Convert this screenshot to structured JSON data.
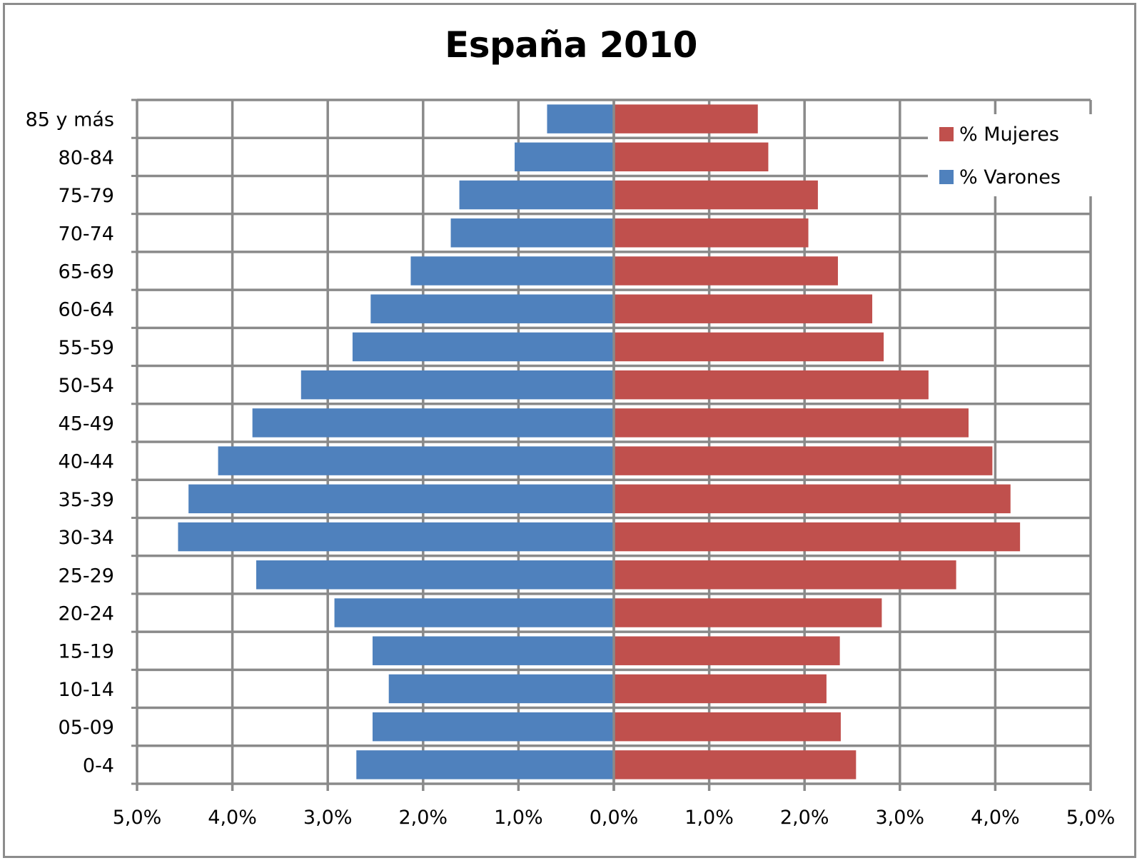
{
  "chart_data": {
    "type": "bar",
    "orientation": "horizontal",
    "title": "España 2010",
    "categories": [
      "0-4",
      "05-09",
      "10-14",
      "15-19",
      "20-24",
      "25-29",
      "30-34",
      "35-39",
      "40-44",
      "45-49",
      "50-54",
      "55-59",
      "60-64",
      "65-69",
      "70-74",
      "75-79",
      "80-84",
      "85 y más"
    ],
    "series": [
      {
        "name": "% Varones",
        "color": "#4f81bd",
        "side": "left",
        "values": [
          2.7,
          2.53,
          2.36,
          2.53,
          2.93,
          3.75,
          4.57,
          4.46,
          4.15,
          3.79,
          3.28,
          2.74,
          2.55,
          2.13,
          1.71,
          1.62,
          1.04,
          0.7
        ]
      },
      {
        "name": "% Mujeres",
        "color": "#c0504d",
        "side": "right",
        "values": [
          2.54,
          2.38,
          2.23,
          2.37,
          2.81,
          3.59,
          4.26,
          4.16,
          3.97,
          3.72,
          3.3,
          2.83,
          2.71,
          2.35,
          2.04,
          2.14,
          1.62,
          1.51
        ]
      }
    ],
    "xlim": [
      -5,
      5
    ],
    "x_ticks": [
      "5,0%",
      "4,0%",
      "3,0%",
      "2,0%",
      "1,0%",
      "0,0%",
      "1,0%",
      "2,0%",
      "3,0%",
      "4,0%",
      "5,0%"
    ],
    "grid": true,
    "legend_position": "top-right",
    "legend": [
      "% Mujeres",
      "% Varones"
    ],
    "xlabel": "",
    "ylabel": ""
  }
}
